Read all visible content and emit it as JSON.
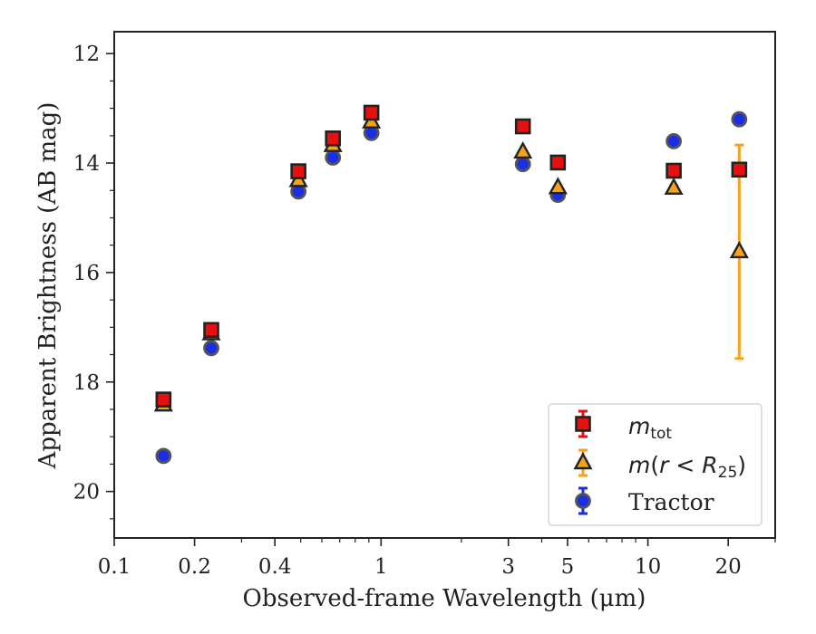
{
  "chart_data": {
    "type": "scatter",
    "title": "",
    "xlabel": "Observed-frame Wavelength (μm)",
    "ylabel": "Apparent Brightness (AB mag)",
    "xscale": "log",
    "xlim": [
      0.1,
      30
    ],
    "ylim": [
      20.85,
      11.6
    ],
    "y_inverted": true,
    "xticks": [
      0.1,
      0.2,
      0.4,
      1,
      3,
      5,
      10,
      20
    ],
    "xtick_labels": [
      "0.1",
      "0.2",
      "0.4",
      "1",
      "3",
      "5",
      "10",
      "20"
    ],
    "yticks": [
      12,
      14,
      16,
      18,
      20
    ],
    "ytick_labels": [
      "12",
      "14",
      "16",
      "18",
      "20"
    ],
    "grid": false,
    "legend_position": "lower-right",
    "series": [
      {
        "name": "m_tot",
        "marker": "square",
        "color": "#e8100f",
        "x": [
          0.153,
          0.231,
          0.49,
          0.66,
          0.92,
          3.4,
          4.6,
          12.5,
          22.0
        ],
        "y": [
          18.32,
          17.05,
          14.15,
          13.55,
          13.08,
          13.33,
          13.99,
          14.14,
          14.12
        ],
        "yerr": [
          0.03,
          0.03,
          0.02,
          0.02,
          0.02,
          0.02,
          0.02,
          0.05,
          0.08
        ]
      },
      {
        "name": "m(r < R25)",
        "marker": "triangle",
        "color": "#f5a31a",
        "x": [
          0.153,
          0.231,
          0.49,
          0.66,
          0.92,
          3.4,
          4.6,
          12.5,
          22.0
        ],
        "y": [
          18.42,
          17.12,
          14.32,
          13.68,
          13.25,
          13.8,
          14.45,
          14.46,
          15.62
        ],
        "yerr": [
          0.03,
          0.03,
          0.02,
          0.02,
          0.02,
          0.02,
          0.02,
          0.05,
          1.95
        ]
      },
      {
        "name": "Tractor",
        "marker": "circle",
        "color": "#1a2ee6",
        "x": [
          0.153,
          0.231,
          0.49,
          0.66,
          0.92,
          3.4,
          4.6,
          12.5,
          22.0
        ],
        "y": [
          19.35,
          17.38,
          14.52,
          13.9,
          13.45,
          14.02,
          14.58,
          13.6,
          13.2
        ],
        "yerr": [
          0.03,
          0.03,
          0.02,
          0.02,
          0.02,
          0.02,
          0.02,
          0.03,
          0.03
        ]
      }
    ],
    "legend": {
      "mtot_main": "m",
      "mtot_sub": "tot",
      "mr_a": "m",
      "mr_b": "(",
      "mr_c": "r",
      "mr_d": " < ",
      "mr_e": "R",
      "mr_sub": "25",
      "mr_f": ")",
      "tractor": "Tractor"
    }
  }
}
